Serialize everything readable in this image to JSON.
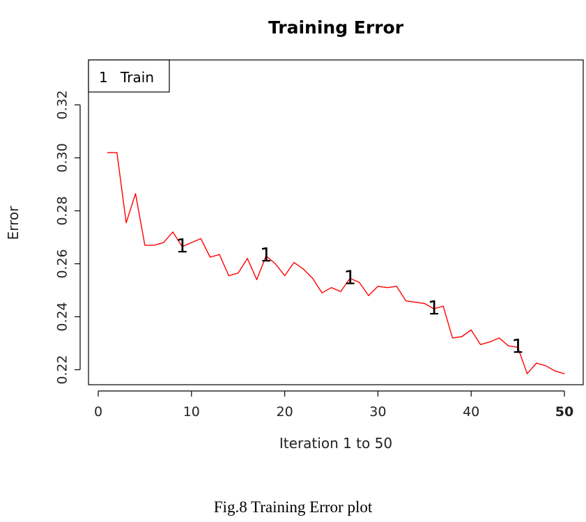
{
  "chart_data": {
    "type": "line",
    "title": "Training Error",
    "xlabel": "Iteration 1 to 50",
    "ylabel": "Error",
    "xlim": [
      0,
      50
    ],
    "ylim": [
      0.215,
      0.335
    ],
    "x_ticks": [
      0,
      10,
      20,
      30,
      40,
      50
    ],
    "x_tick_labels": [
      "0",
      "10",
      "20",
      "30",
      "40",
      "50"
    ],
    "y_ticks": [
      0.22,
      0.24,
      0.26,
      0.28,
      0.3,
      0.32
    ],
    "y_tick_labels": [
      "0.22",
      "0.24",
      "0.26",
      "0.28",
      "0.30",
      "0.32"
    ],
    "legend": {
      "position": "top-left",
      "symbol": "1",
      "label": "Train"
    },
    "grid": false,
    "series": [
      {
        "name": "Train",
        "color": "#ff0000",
        "marker_symbol": "1",
        "marker_x": [
          9,
          18,
          27,
          36,
          45
        ],
        "x": [
          1,
          2,
          3,
          4,
          5,
          6,
          7,
          8,
          9,
          10,
          11,
          12,
          13,
          14,
          15,
          16,
          17,
          18,
          19,
          20,
          21,
          22,
          23,
          24,
          25,
          26,
          27,
          28,
          29,
          30,
          31,
          32,
          33,
          34,
          35,
          36,
          37,
          38,
          39,
          40,
          41,
          42,
          43,
          44,
          45,
          46,
          47,
          48,
          49,
          50
        ],
        "y": [
          0.302,
          0.302,
          0.2755,
          0.2865,
          0.267,
          0.267,
          0.268,
          0.272,
          0.2665,
          0.268,
          0.2695,
          0.2625,
          0.2635,
          0.2555,
          0.2565,
          0.262,
          0.254,
          0.263,
          0.26,
          0.2555,
          0.2605,
          0.258,
          0.2545,
          0.249,
          0.251,
          0.2495,
          0.2545,
          0.253,
          0.248,
          0.2515,
          0.251,
          0.2515,
          0.246,
          0.2455,
          0.245,
          0.243,
          0.244,
          0.232,
          0.2325,
          0.235,
          0.2295,
          0.2305,
          0.232,
          0.229,
          0.2285,
          0.2185,
          0.2225,
          0.2215,
          0.2195,
          0.2185
        ]
      }
    ]
  },
  "caption": "Fig.8  Training Error plot"
}
